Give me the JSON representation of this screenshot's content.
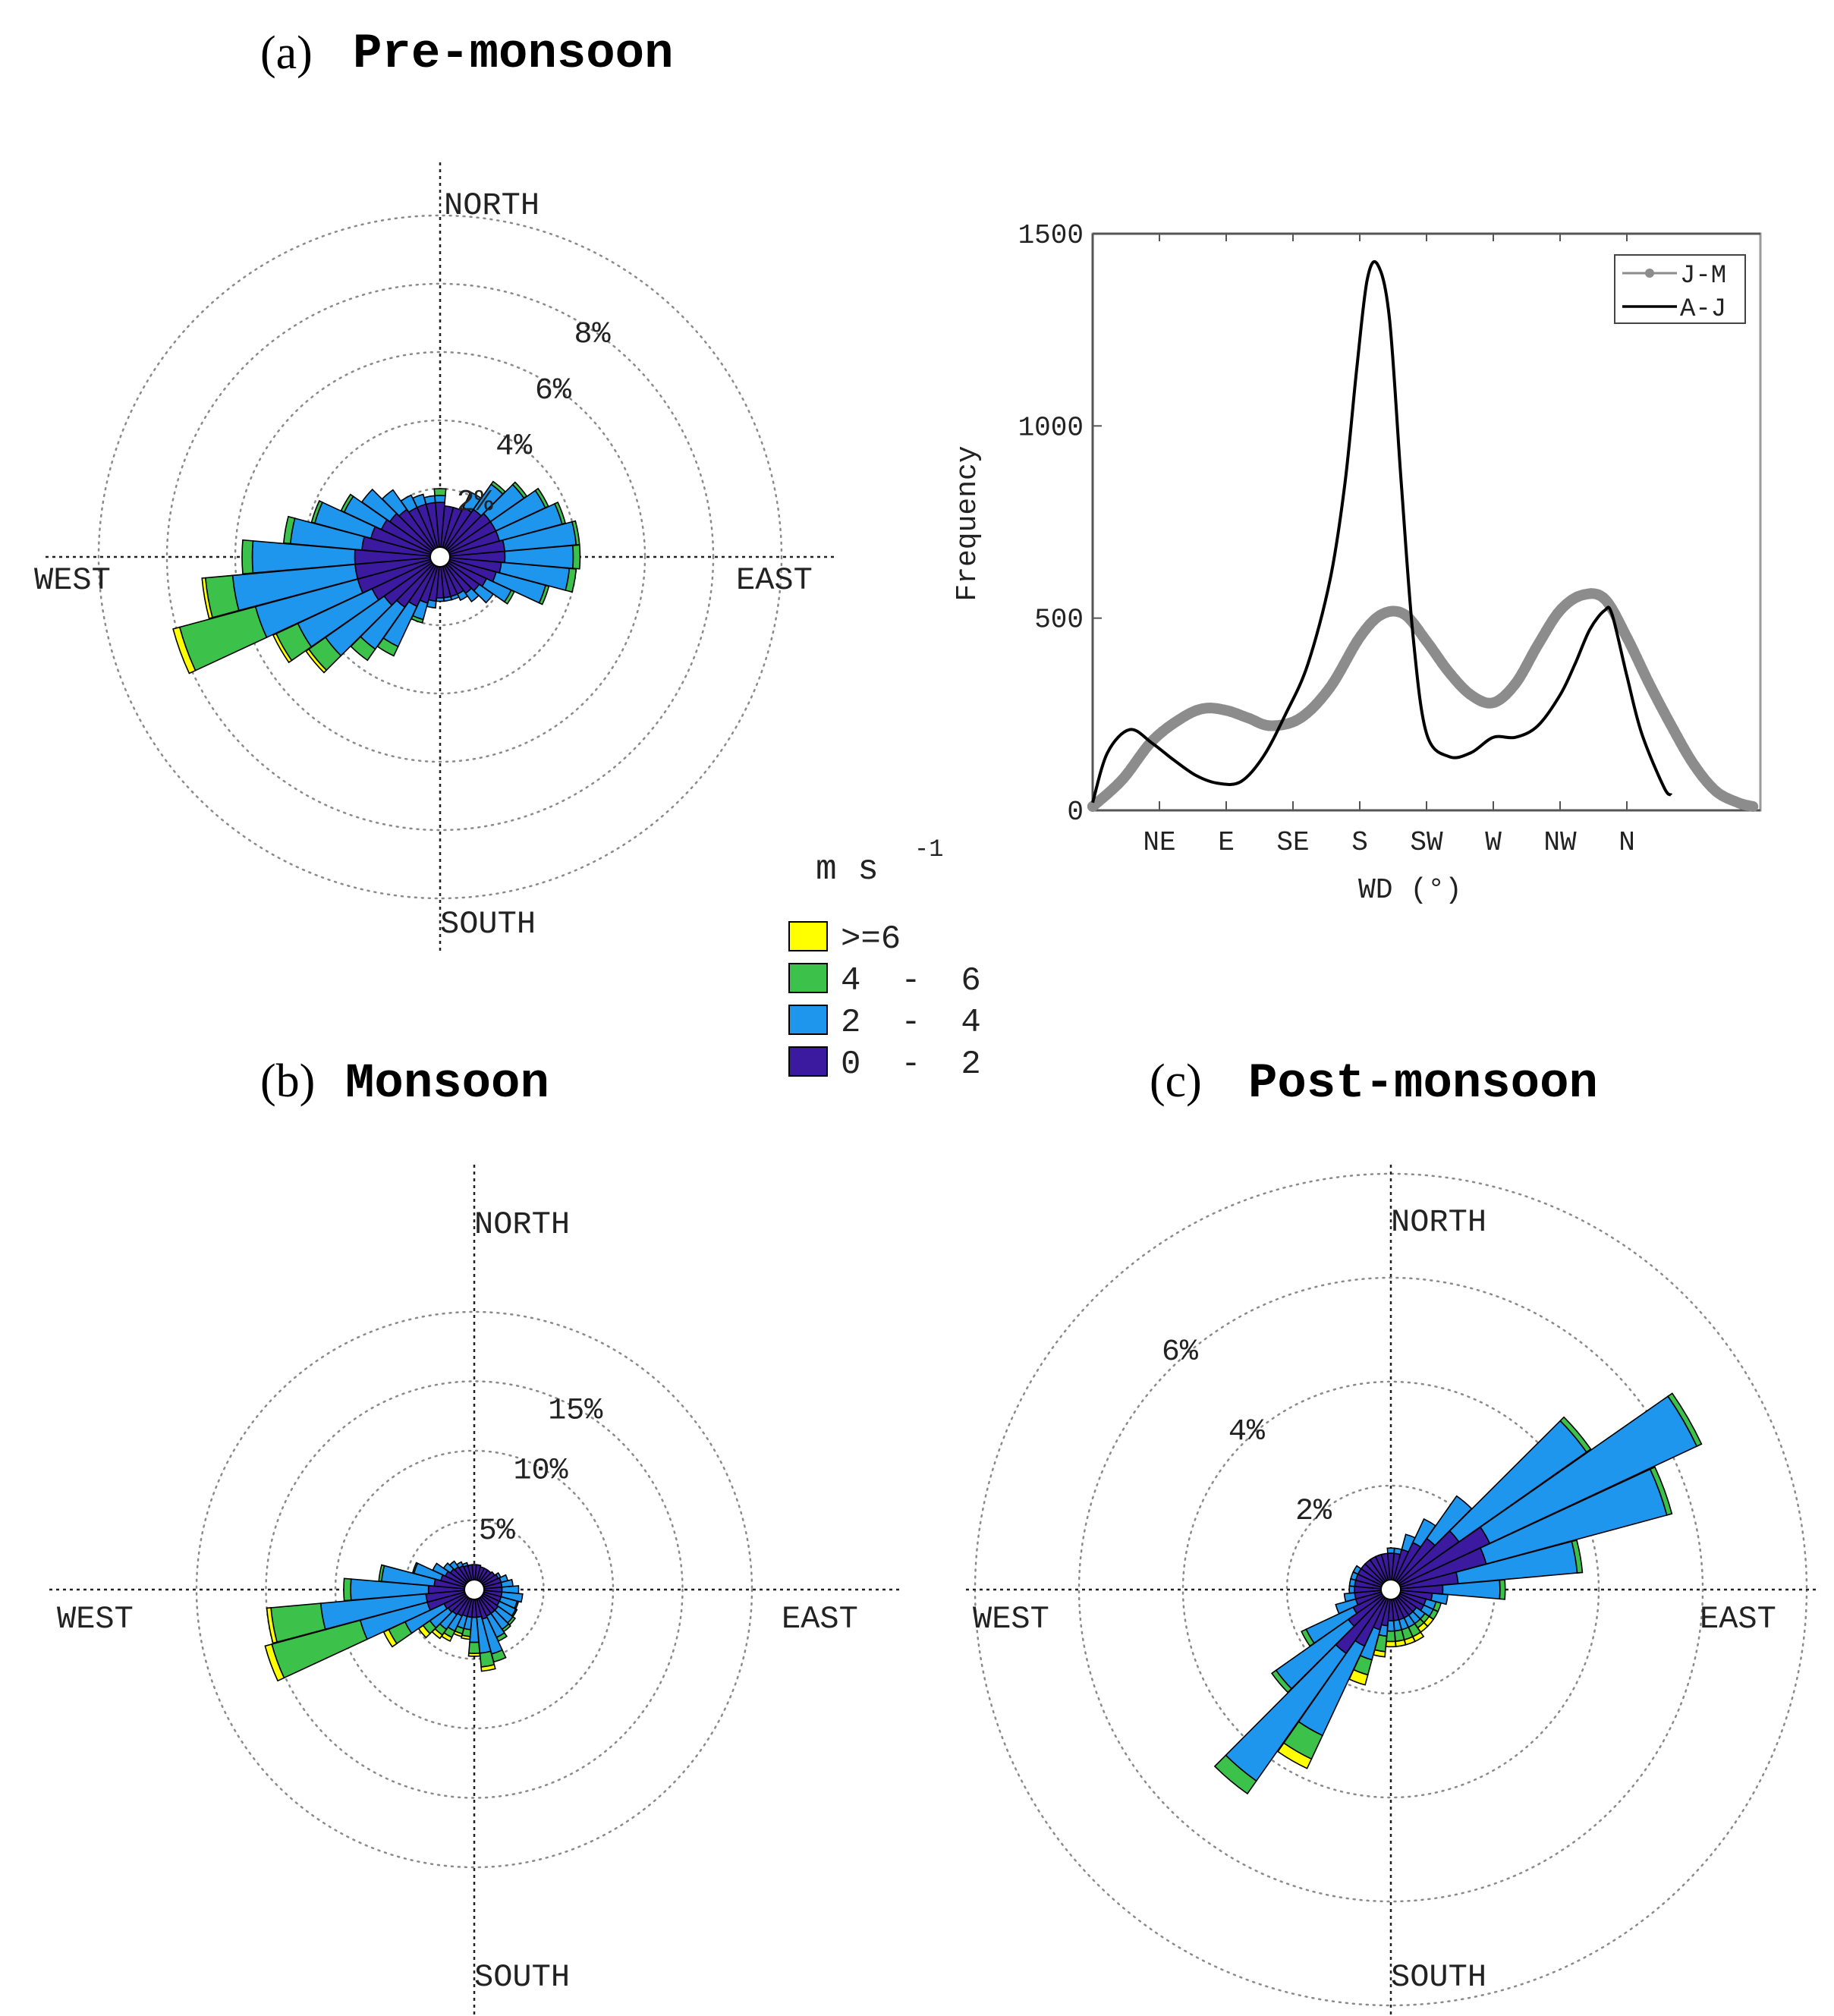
{
  "colors": {
    "ge6": "#ffff00",
    "4to6": "#3cc14a",
    "2to4": "#1e96ee",
    "0to2": "#3c1aa0",
    "jm_series": "#8c8c8c",
    "aj_series": "#000000"
  },
  "legend": {
    "unit": "m s",
    "unit_exp": "-1",
    "items": [
      {
        "label": ">=6",
        "color_key": "ge6"
      },
      {
        "label": "4  -  6",
        "color_key": "4to6"
      },
      {
        "label": "2  -  4",
        "color_key": "2to4"
      },
      {
        "label": "0  -  2",
        "color_key": "0to2"
      }
    ]
  },
  "chart_data": [
    {
      "type": "wind-rose",
      "panel": "(a)",
      "title": "Pre-monsoon",
      "directions": {
        "north": "NORTH",
        "south": "SOUTH",
        "east": "EAST",
        "west": "WEST"
      },
      "ring_values": [
        2,
        4,
        6,
        8,
        10
      ],
      "ring_labels": [
        "2%",
        "4%",
        "6%",
        "8%"
      ],
      "sector_width_deg": 10,
      "sectors": [
        {
          "dir": 0,
          "c": [
            1.6,
            0.2,
            0.2,
            0
          ]
        },
        {
          "dir": 10,
          "c": [
            1.5,
            0.0,
            0.0,
            0
          ]
        },
        {
          "dir": 20,
          "c": [
            1.5,
            0.0,
            0.0,
            0
          ]
        },
        {
          "dir": 30,
          "c": [
            1.6,
            0.5,
            0.0,
            0
          ]
        },
        {
          "dir": 40,
          "c": [
            1.7,
            0.9,
            0.1,
            0
          ]
        },
        {
          "dir": 50,
          "c": [
            1.8,
            1.2,
            0.1,
            0
          ]
        },
        {
          "dir": 60,
          "c": [
            1.8,
            1.6,
            0.1,
            0
          ]
        },
        {
          "dir": 70,
          "c": [
            1.8,
            1.9,
            0.1,
            0
          ]
        },
        {
          "dir": 80,
          "c": [
            1.9,
            2.1,
            0.1,
            0
          ]
        },
        {
          "dir": 90,
          "c": [
            1.9,
            2.0,
            0.2,
            0
          ]
        },
        {
          "dir": 100,
          "c": [
            1.8,
            2.0,
            0.2,
            0
          ]
        },
        {
          "dir": 110,
          "c": [
            1.7,
            1.5,
            0.1,
            0
          ]
        },
        {
          "dir": 120,
          "c": [
            1.5,
            0.8,
            0.1,
            0
          ]
        },
        {
          "dir": 130,
          "c": [
            1.4,
            0.5,
            0.0,
            0
          ]
        },
        {
          "dir": 140,
          "c": [
            1.3,
            0.3,
            0.0,
            0
          ]
        },
        {
          "dir": 150,
          "c": [
            1.2,
            0.2,
            0.0,
            0
          ]
        },
        {
          "dir": 160,
          "c": [
            1.2,
            0.1,
            0.0,
            0
          ]
        },
        {
          "dir": 170,
          "c": [
            1.2,
            0.1,
            0.0,
            0
          ]
        },
        {
          "dir": 180,
          "c": [
            1.2,
            0.1,
            0.0,
            0
          ]
        },
        {
          "dir": 190,
          "c": [
            1.3,
            0.2,
            0.0,
            0
          ]
        },
        {
          "dir": 200,
          "c": [
            1.4,
            0.5,
            0.1,
            0
          ]
        },
        {
          "dir": 210,
          "c": [
            1.6,
            1.3,
            0.3,
            0
          ]
        },
        {
          "dir": 220,
          "c": [
            1.8,
            1.5,
            0.4,
            0
          ]
        },
        {
          "dir": 230,
          "c": [
            2.0,
            2.1,
            0.6,
            0.1
          ]
        },
        {
          "dir": 240,
          "c": [
            2.2,
            2.4,
            0.7,
            0.1
          ]
        },
        {
          "dir": 250,
          "c": [
            2.5,
            3.1,
            2.3,
            0.2
          ]
        },
        {
          "dir": 260,
          "c": [
            2.5,
            3.6,
            0.8,
            0.1
          ]
        },
        {
          "dir": 270,
          "c": [
            2.5,
            3.0,
            0.3,
            0
          ]
        },
        {
          "dir": 280,
          "c": [
            2.3,
            2.1,
            0.2,
            0
          ]
        },
        {
          "dir": 290,
          "c": [
            2.1,
            1.7,
            0.1,
            0
          ]
        },
        {
          "dir": 300,
          "c": [
            1.9,
            1.2,
            0.1,
            0
          ]
        },
        {
          "dir": 310,
          "c": [
            1.8,
            1.0,
            0.0,
            0
          ]
        },
        {
          "dir": 320,
          "c": [
            1.7,
            0.7,
            0.0,
            0
          ]
        },
        {
          "dir": 330,
          "c": [
            1.6,
            0.4,
            0.0,
            0
          ]
        },
        {
          "dir": 340,
          "c": [
            1.6,
            0.3,
            0.0,
            0
          ]
        },
        {
          "dir": 350,
          "c": [
            1.6,
            0.2,
            0.0,
            0
          ]
        }
      ]
    },
    {
      "type": "wind-rose",
      "panel": "(b)",
      "title": "Monsoon",
      "directions": {
        "north": "NORTH",
        "south": "SOUTH",
        "east": "EAST",
        "west": "WEST"
      },
      "ring_values": [
        5,
        10,
        15,
        20
      ],
      "ring_labels": [
        "5%",
        "10%",
        "15%"
      ],
      "sector_width_deg": 10,
      "sectors": [
        {
          "dir": 0,
          "c": [
            1.8,
            0.0,
            0.0,
            0
          ]
        },
        {
          "dir": 10,
          "c": [
            1.8,
            0.0,
            0.0,
            0
          ]
        },
        {
          "dir": 20,
          "c": [
            1.7,
            0.0,
            0.0,
            0
          ]
        },
        {
          "dir": 30,
          "c": [
            1.7,
            0.0,
            0.0,
            0
          ]
        },
        {
          "dir": 40,
          "c": [
            1.7,
            0.0,
            0.0,
            0
          ]
        },
        {
          "dir": 50,
          "c": [
            1.8,
            0.0,
            0.0,
            0
          ]
        },
        {
          "dir": 60,
          "c": [
            1.9,
            0.2,
            0.0,
            0
          ]
        },
        {
          "dir": 70,
          "c": [
            2.0,
            0.5,
            0.0,
            0
          ]
        },
        {
          "dir": 80,
          "c": [
            2.0,
            0.8,
            0.0,
            0
          ]
        },
        {
          "dir": 90,
          "c": [
            2.0,
            1.2,
            0.0,
            0
          ]
        },
        {
          "dir": 100,
          "c": [
            2.0,
            1.5,
            0.0,
            0
          ]
        },
        {
          "dir": 110,
          "c": [
            2.0,
            1.2,
            0.1,
            0
          ]
        },
        {
          "dir": 120,
          "c": [
            2.0,
            1.3,
            0.1,
            0
          ]
        },
        {
          "dir": 130,
          "c": [
            2.1,
            1.3,
            0.2,
            0
          ]
        },
        {
          "dir": 140,
          "c": [
            2.1,
            1.4,
            0.2,
            0
          ]
        },
        {
          "dir": 150,
          "c": [
            2.1,
            1.7,
            0.3,
            0
          ]
        },
        {
          "dir": 160,
          "c": [
            2.2,
            2.6,
            0.6,
            0
          ]
        },
        {
          "dir": 170,
          "c": [
            2.0,
            2.6,
            1.0,
            0.3
          ]
        },
        {
          "dir": 180,
          "c": [
            2.0,
            1.8,
            0.8,
            0.2
          ]
        },
        {
          "dir": 190,
          "c": [
            2.0,
            0.9,
            0.5,
            0.2
          ]
        },
        {
          "dir": 200,
          "c": [
            2.0,
            0.9,
            0.4,
            0.2
          ]
        },
        {
          "dir": 210,
          "c": [
            2.1,
            1.2,
            0.5,
            0.3
          ]
        },
        {
          "dir": 220,
          "c": [
            2.2,
            1.3,
            0.5,
            0.3
          ]
        },
        {
          "dir": 230,
          "c": [
            2.3,
            1.6,
            0.6,
            0.4
          ]
        },
        {
          "dir": 240,
          "c": [
            2.4,
            3.1,
            1.3,
            0.4
          ]
        },
        {
          "dir": 250,
          "c": [
            3.5,
            5.0,
            6.6,
            0.5
          ]
        },
        {
          "dir": 260,
          "c": [
            3.5,
            7.6,
            3.6,
            0.3
          ]
        },
        {
          "dir": 270,
          "c": [
            3.3,
            5.6,
            0.5,
            0
          ]
        },
        {
          "dir": 280,
          "c": [
            2.9,
            3.8,
            0.2,
            0
          ]
        },
        {
          "dir": 290,
          "c": [
            2.5,
            2.0,
            0.1,
            0
          ]
        },
        {
          "dir": 300,
          "c": [
            2.3,
            1.0,
            0.0,
            0
          ]
        },
        {
          "dir": 310,
          "c": [
            2.1,
            0.6,
            0.0,
            0
          ]
        },
        {
          "dir": 320,
          "c": [
            2.0,
            0.5,
            0.0,
            0
          ]
        },
        {
          "dir": 330,
          "c": [
            1.9,
            0.3,
            0.0,
            0
          ]
        },
        {
          "dir": 340,
          "c": [
            1.8,
            0.2,
            0.0,
            0
          ]
        },
        {
          "dir": 350,
          "c": [
            1.8,
            0.0,
            0.0,
            0
          ]
        }
      ]
    },
    {
      "type": "wind-rose",
      "panel": "(c)",
      "title": "Post-monsoon",
      "directions": {
        "north": "NORTH",
        "south": "SOUTH",
        "east": "EAST",
        "west": "WEST"
      },
      "ring_values": [
        2,
        4,
        6,
        8
      ],
      "ring_labels": [
        "2%",
        "4%",
        "6%"
      ],
      "sector_width_deg": 10,
      "sectors": [
        {
          "dir": 0,
          "c": [
            0.7,
            0.1,
            0.0,
            0
          ]
        },
        {
          "dir": 10,
          "c": [
            0.7,
            0.1,
            0.0,
            0
          ]
        },
        {
          "dir": 20,
          "c": [
            0.8,
            0.3,
            0.0,
            0
          ]
        },
        {
          "dir": 30,
          "c": [
            1.0,
            0.5,
            0.0,
            0
          ]
        },
        {
          "dir": 40,
          "c": [
            1.2,
            1.0,
            0.0,
            0
          ]
        },
        {
          "dir": 50,
          "c": [
            1.6,
            3.0,
            0.1,
            0
          ]
        },
        {
          "dir": 60,
          "c": [
            2.1,
            4.4,
            0.1,
            0
          ]
        },
        {
          "dir": 70,
          "c": [
            1.9,
            3.6,
            0.1,
            0
          ]
        },
        {
          "dir": 80,
          "c": [
            1.3,
            2.3,
            0.1,
            0
          ]
        },
        {
          "dir": 90,
          "c": [
            1.0,
            1.1,
            0.1,
            0
          ]
        },
        {
          "dir": 100,
          "c": [
            0.8,
            0.3,
            0.0,
            0
          ]
        },
        {
          "dir": 110,
          "c": [
            0.7,
            0.2,
            0.1,
            0
          ]
        },
        {
          "dir": 120,
          "c": [
            0.7,
            0.2,
            0.1,
            0
          ]
        },
        {
          "dir": 130,
          "c": [
            0.6,
            0.2,
            0.1,
            0.1
          ]
        },
        {
          "dir": 140,
          "c": [
            0.6,
            0.2,
            0.1,
            0.1
          ]
        },
        {
          "dir": 150,
          "c": [
            0.6,
            0.2,
            0.2,
            0.1
          ]
        },
        {
          "dir": 160,
          "c": [
            0.6,
            0.2,
            0.2,
            0.1
          ]
        },
        {
          "dir": 170,
          "c": [
            0.6,
            0.2,
            0.2,
            0.1
          ]
        },
        {
          "dir": 180,
          "c": [
            0.6,
            0.2,
            0.2,
            0.1
          ]
        },
        {
          "dir": 190,
          "c": [
            0.7,
            0.2,
            0.3,
            0.1
          ]
        },
        {
          "dir": 200,
          "c": [
            0.8,
            0.6,
            0.3,
            0.2
          ]
        },
        {
          "dir": 210,
          "c": [
            1.2,
            1.9,
            0.5,
            0.2
          ]
        },
        {
          "dir": 220,
          "c": [
            1.5,
            3.0,
            0.3,
            0
          ]
        },
        {
          "dir": 230,
          "c": [
            1.0,
            1.7,
            0.1,
            0
          ]
        },
        {
          "dir": 240,
          "c": [
            0.8,
            1.0,
            0.1,
            0
          ]
        },
        {
          "dir": 250,
          "c": [
            0.7,
            0.4,
            0.0,
            0
          ]
        },
        {
          "dir": 260,
          "c": [
            0.7,
            0.2,
            0.0,
            0
          ]
        },
        {
          "dir": 270,
          "c": [
            0.7,
            0.1,
            0.0,
            0
          ]
        },
        {
          "dir": 280,
          "c": [
            0.7,
            0.1,
            0.0,
            0
          ]
        },
        {
          "dir": 290,
          "c": [
            0.7,
            0.1,
            0.0,
            0
          ]
        },
        {
          "dir": 300,
          "c": [
            0.7,
            0.1,
            0.0,
            0
          ]
        },
        {
          "dir": 310,
          "c": [
            0.7,
            0.0,
            0.0,
            0
          ]
        },
        {
          "dir": 320,
          "c": [
            0.7,
            0.0,
            0.0,
            0
          ]
        },
        {
          "dir": 330,
          "c": [
            0.7,
            0.0,
            0.0,
            0
          ]
        },
        {
          "dir": 340,
          "c": [
            0.7,
            0.0,
            0.0,
            0
          ]
        },
        {
          "dir": 350,
          "c": [
            0.7,
            0.0,
            0.0,
            0
          ]
        }
      ]
    },
    {
      "type": "line",
      "panel": "inset",
      "title": "",
      "xlabel": "WD (°)",
      "ylabel": "Frequency",
      "xlim": [
        0,
        450
      ],
      "ylim": [
        0,
        1500
      ],
      "yticks": [
        0,
        500,
        1000,
        1500
      ],
      "xtick_values": [
        45,
        90,
        135,
        180,
        225,
        270,
        315,
        360
      ],
      "xtick_labels": [
        "NE",
        "E",
        "SE",
        "S",
        "SW",
        "W",
        "NW",
        "N"
      ],
      "series": [
        {
          "name": "J-M",
          "style": "markers",
          "color_key": "jm_series",
          "x": [
            0,
            20,
            40,
            60,
            75,
            90,
            105,
            120,
            140,
            160,
            180,
            195,
            210,
            225,
            240,
            255,
            270,
            285,
            300,
            315,
            330,
            345,
            360,
            375,
            390,
            405,
            420,
            435,
            445
          ],
          "y": [
            10,
            80,
            180,
            240,
            265,
            260,
            240,
            220,
            240,
            320,
            450,
            510,
            510,
            440,
            360,
            300,
            280,
            330,
            430,
            520,
            560,
            550,
            450,
            330,
            220,
            120,
            50,
            20,
            10
          ]
        },
        {
          "name": "A-J",
          "style": "line",
          "color_key": "aj_series",
          "x": [
            0,
            10,
            25,
            40,
            55,
            70,
            85,
            100,
            115,
            130,
            145,
            160,
            170,
            178,
            185,
            192,
            200,
            208,
            216,
            225,
            240,
            255,
            270,
            285,
            300,
            315,
            325,
            335,
            345,
            350,
            360,
            370,
            385,
            390
          ],
          "y": [
            20,
            150,
            210,
            175,
            130,
            90,
            70,
            75,
            140,
            250,
            380,
            600,
            850,
            1150,
            1380,
            1420,
            1280,
            850,
            450,
            200,
            140,
            150,
            190,
            190,
            220,
            300,
            380,
            470,
            520,
            510,
            350,
            200,
            60,
            40
          ]
        }
      ]
    }
  ]
}
